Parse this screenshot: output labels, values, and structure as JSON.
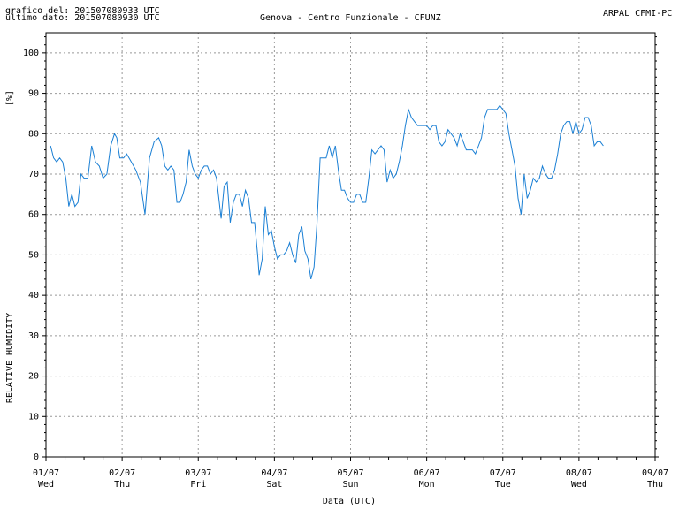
{
  "header": {
    "graph_date": "grafico del: 201507080933 UTC",
    "last_data": "ultimo dato: 201507080930 UTC",
    "station": "Genova - Centro Funzionale - CFUNZ",
    "agency": "ARPAL CFMI-PC"
  },
  "chart_data": {
    "type": "line",
    "title": "Genova - Centro Funzionale - CFUNZ",
    "xlabel": "Data (UTC)",
    "ylabel": "RELATIVE HUMIDITY",
    "unit": "[%]",
    "ylim": [
      0,
      105
    ],
    "y_ticks": [
      0,
      10,
      20,
      30,
      40,
      50,
      60,
      70,
      80,
      90,
      100
    ],
    "x_ticks": [
      {
        "date": "01/07",
        "day": "Wed"
      },
      {
        "date": "02/07",
        "day": "Thu"
      },
      {
        "date": "03/07",
        "day": "Fri"
      },
      {
        "date": "04/07",
        "day": "Sat"
      },
      {
        "date": "05/07",
        "day": "Sun"
      },
      {
        "date": "06/07",
        "day": "Mon"
      },
      {
        "date": "07/07",
        "day": "Tue"
      },
      {
        "date": "08/07",
        "day": "Wed"
      },
      {
        "date": "09/07",
        "day": "Thu"
      }
    ],
    "grid": true,
    "line_color": "#1a7fd4",
    "series": [
      {
        "values": [
          [
            0.06,
            77
          ],
          [
            0.1,
            74
          ],
          [
            0.14,
            73
          ],
          [
            0.18,
            74
          ],
          [
            0.22,
            73
          ],
          [
            0.26,
            69
          ],
          [
            0.3,
            62
          ],
          [
            0.34,
            65
          ],
          [
            0.38,
            62
          ],
          [
            0.42,
            63
          ],
          [
            0.46,
            70
          ],
          [
            0.5,
            69
          ],
          [
            0.55,
            69
          ],
          [
            0.6,
            77
          ],
          [
            0.65,
            73
          ],
          [
            0.7,
            72
          ],
          [
            0.75,
            69
          ],
          [
            0.8,
            70
          ],
          [
            0.85,
            77
          ],
          [
            0.9,
            80
          ],
          [
            0.93,
            79
          ],
          [
            0.97,
            74
          ],
          [
            1.02,
            74
          ],
          [
            1.06,
            75
          ],
          [
            1.12,
            73
          ],
          [
            1.18,
            71
          ],
          [
            1.24,
            68
          ],
          [
            1.3,
            60
          ],
          [
            1.36,
            74
          ],
          [
            1.42,
            78
          ],
          [
            1.48,
            79
          ],
          [
            1.52,
            77
          ],
          [
            1.56,
            72
          ],
          [
            1.6,
            71
          ],
          [
            1.64,
            72
          ],
          [
            1.68,
            71
          ],
          [
            1.72,
            63
          ],
          [
            1.76,
            63
          ],
          [
            1.8,
            65
          ],
          [
            1.84,
            68
          ],
          [
            1.88,
            76
          ],
          [
            1.92,
            72
          ],
          [
            1.96,
            70
          ],
          [
            2.0,
            69
          ],
          [
            2.04,
            71
          ],
          [
            2.08,
            72
          ],
          [
            2.12,
            72
          ],
          [
            2.16,
            70
          ],
          [
            2.2,
            71
          ],
          [
            2.24,
            69
          ],
          [
            2.3,
            59
          ],
          [
            2.34,
            67
          ],
          [
            2.38,
            68
          ],
          [
            2.42,
            58
          ],
          [
            2.46,
            63
          ],
          [
            2.5,
            65
          ],
          [
            2.54,
            65
          ],
          [
            2.58,
            62
          ],
          [
            2.62,
            66
          ],
          [
            2.66,
            64
          ],
          [
            2.7,
            58
          ],
          [
            2.74,
            58
          ],
          [
            2.78,
            50
          ],
          [
            2.8,
            45
          ],
          [
            2.84,
            49
          ],
          [
            2.88,
            62
          ],
          [
            2.92,
            55
          ],
          [
            2.96,
            56
          ],
          [
            3.0,
            52
          ],
          [
            3.04,
            49
          ],
          [
            3.08,
            50
          ],
          [
            3.12,
            50
          ],
          [
            3.16,
            51
          ],
          [
            3.2,
            53
          ],
          [
            3.24,
            50
          ],
          [
            3.28,
            48
          ],
          [
            3.32,
            55
          ],
          [
            3.36,
            57
          ],
          [
            3.4,
            51
          ],
          [
            3.44,
            49
          ],
          [
            3.48,
            44
          ],
          [
            3.52,
            47
          ],
          [
            3.56,
            58
          ],
          [
            3.6,
            74
          ],
          [
            3.64,
            74
          ],
          [
            3.68,
            74
          ],
          [
            3.72,
            77
          ],
          [
            3.76,
            74
          ],
          [
            3.8,
            77
          ],
          [
            3.84,
            71
          ],
          [
            3.88,
            66
          ],
          [
            3.92,
            66
          ],
          [
            3.96,
            64
          ],
          [
            4.0,
            63
          ],
          [
            4.04,
            63
          ],
          [
            4.08,
            65
          ],
          [
            4.12,
            65
          ],
          [
            4.16,
            63
          ],
          [
            4.2,
            63
          ],
          [
            4.24,
            69
          ],
          [
            4.28,
            76
          ],
          [
            4.32,
            75
          ],
          [
            4.36,
            76
          ],
          [
            4.4,
            77
          ],
          [
            4.44,
            76
          ],
          [
            4.48,
            68
          ],
          [
            4.52,
            71
          ],
          [
            4.56,
            69
          ],
          [
            4.6,
            70
          ],
          [
            4.64,
            73
          ],
          [
            4.68,
            77
          ],
          [
            4.72,
            82
          ],
          [
            4.76,
            86
          ],
          [
            4.8,
            84
          ],
          [
            4.84,
            83
          ],
          [
            4.88,
            82
          ],
          [
            4.92,
            82
          ],
          [
            4.96,
            82
          ],
          [
            5.0,
            82
          ],
          [
            5.04,
            81
          ],
          [
            5.08,
            82
          ],
          [
            5.12,
            82
          ],
          [
            5.16,
            78
          ],
          [
            5.2,
            77
          ],
          [
            5.24,
            78
          ],
          [
            5.28,
            81
          ],
          [
            5.32,
            80
          ],
          [
            5.36,
            79
          ],
          [
            5.4,
            77
          ],
          [
            5.44,
            80
          ],
          [
            5.48,
            78
          ],
          [
            5.52,
            76
          ],
          [
            5.56,
            76
          ],
          [
            5.6,
            76
          ],
          [
            5.64,
            75
          ],
          [
            5.68,
            77
          ],
          [
            5.72,
            79
          ],
          [
            5.76,
            84
          ],
          [
            5.8,
            86
          ],
          [
            5.84,
            86
          ],
          [
            5.88,
            86
          ],
          [
            5.92,
            86
          ],
          [
            5.96,
            87
          ],
          [
            6.0,
            86
          ],
          [
            6.04,
            85
          ],
          [
            6.08,
            80
          ],
          [
            6.12,
            76
          ],
          [
            6.16,
            72
          ],
          [
            6.2,
            64
          ],
          [
            6.24,
            60
          ],
          [
            6.28,
            70
          ],
          [
            6.32,
            64
          ],
          [
            6.36,
            66
          ],
          [
            6.4,
            69
          ],
          [
            6.44,
            68
          ],
          [
            6.48,
            69
          ],
          [
            6.52,
            72
          ],
          [
            6.56,
            70
          ],
          [
            6.6,
            69
          ],
          [
            6.64,
            69
          ],
          [
            6.68,
            71
          ],
          [
            6.72,
            75
          ],
          [
            6.76,
            80
          ],
          [
            6.8,
            82
          ],
          [
            6.84,
            83
          ],
          [
            6.88,
            83
          ],
          [
            6.92,
            80
          ],
          [
            6.96,
            83
          ],
          [
            7.0,
            80
          ],
          [
            7.04,
            81
          ],
          [
            7.08,
            84
          ],
          [
            7.12,
            84
          ],
          [
            7.16,
            82
          ],
          [
            7.2,
            77
          ],
          [
            7.24,
            78
          ],
          [
            7.28,
            78
          ],
          [
            7.32,
            77
          ]
        ]
      }
    ]
  }
}
